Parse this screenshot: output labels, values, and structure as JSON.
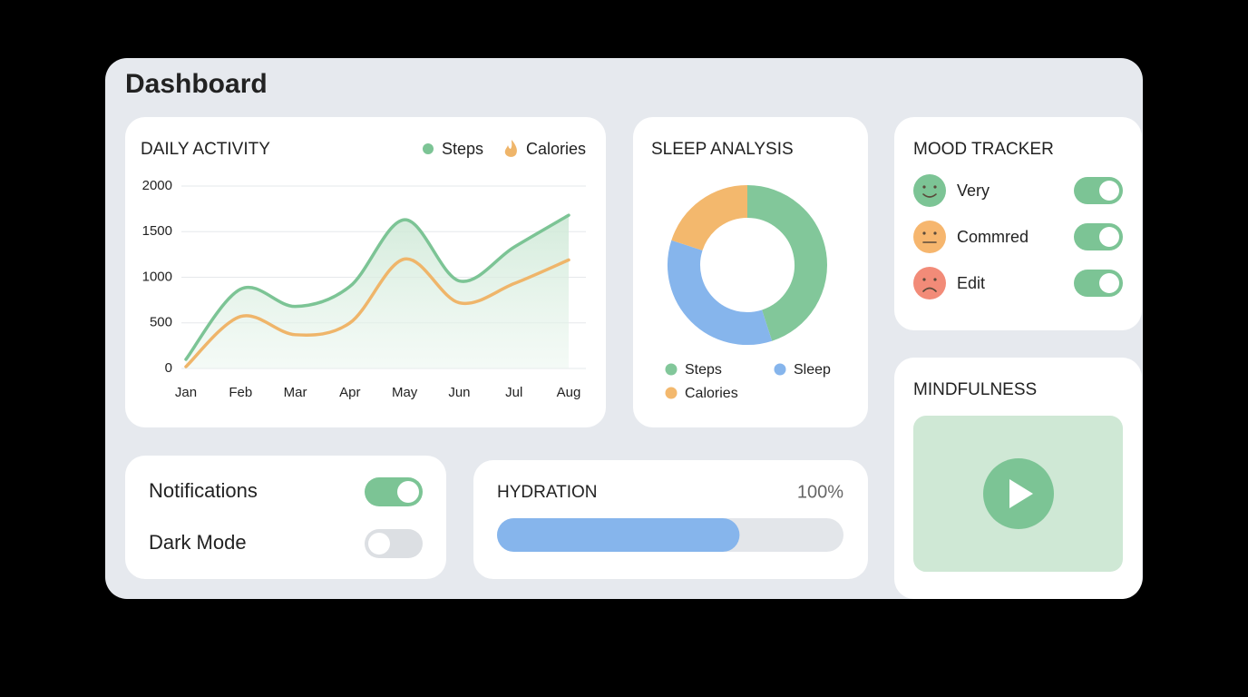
{
  "header": {
    "title": "Dashboard"
  },
  "chart_data": [
    {
      "type": "line",
      "title": "DAILY ACTIVITY",
      "categories": [
        "Jan",
        "Feb",
        "Mar",
        "Apr",
        "May",
        "Jun",
        "Jul",
        "Aug"
      ],
      "series": [
        {
          "name": "Steps",
          "color": "#7cc495",
          "values": [
            100,
            870,
            680,
            900,
            1630,
            960,
            1330,
            1680
          ]
        },
        {
          "name": "Calories",
          "color": "#efb56a",
          "values": [
            20,
            570,
            370,
            500,
            1200,
            720,
            930,
            1190
          ]
        }
      ],
      "ylim": [
        0,
        2000
      ],
      "yticks": [
        0,
        500,
        1000,
        1500,
        2000
      ],
      "grid": true,
      "legend": "top-right"
    },
    {
      "type": "donut",
      "title": "SLEEP ANALYSIS",
      "categories": [
        "Steps",
        "Sleep",
        "Calories"
      ],
      "values": [
        45,
        35,
        20
      ],
      "colors": [
        "#82c79a",
        "#86b5ec",
        "#f3b86d"
      ]
    }
  ],
  "mood_tracker": {
    "title": "MOOD TRACKER",
    "items": [
      {
        "label": "Very",
        "color": "#7cc495",
        "enabled": true
      },
      {
        "label": "Commred",
        "color": "#f6b66e",
        "enabled": true
      },
      {
        "label": "Edit",
        "color": "#f28b78",
        "enabled": true
      }
    ]
  },
  "mindfulness": {
    "title": "MINDFULNESS"
  },
  "settings": [
    {
      "label": "Notifications",
      "enabled": true
    },
    {
      "label": "Dark Mode",
      "enabled": false
    }
  ],
  "hydration": {
    "title": "HYDRATION",
    "label": "100%",
    "fill": 70
  }
}
